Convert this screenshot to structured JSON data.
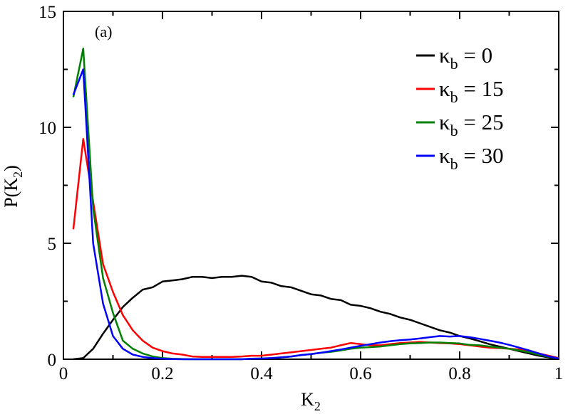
{
  "chart_data": {
    "type": "line",
    "annotation": "(a)",
    "xlabel": {
      "main": "K",
      "sub": "2"
    },
    "ylabel": {
      "main": "P(K",
      "sub": "2",
      "close": ")"
    },
    "xlim": [
      0,
      1
    ],
    "ylim": [
      0,
      15
    ],
    "xticks": [
      0,
      0.2,
      0.4,
      0.6,
      0.8,
      1
    ],
    "xtick_labels": [
      "0",
      "0.2",
      "0.4",
      "0.6",
      "0.8",
      "1"
    ],
    "yticks": [
      0,
      5,
      10,
      15
    ],
    "ytick_labels": [
      "0",
      "5",
      "10",
      "15"
    ],
    "legend_position": "top-right",
    "series": [
      {
        "name": "κb = 0",
        "legend": {
          "symbol": "κ",
          "sub": "b",
          "text": " = 0"
        },
        "color": "#000000",
        "x": [
          0.02,
          0.04,
          0.06,
          0.08,
          0.1,
          0.12,
          0.14,
          0.16,
          0.18,
          0.2,
          0.22,
          0.24,
          0.26,
          0.28,
          0.3,
          0.32,
          0.34,
          0.36,
          0.38,
          0.4,
          0.42,
          0.44,
          0.46,
          0.48,
          0.5,
          0.52,
          0.54,
          0.56,
          0.58,
          0.6,
          0.62,
          0.64,
          0.66,
          0.68,
          0.7,
          0.72,
          0.74,
          0.76,
          0.78,
          0.8,
          0.82,
          0.84,
          0.86,
          0.88,
          0.9,
          0.92,
          0.94,
          0.96,
          0.98,
          1.0
        ],
        "y": [
          0.0,
          0.05,
          0.45,
          1.1,
          1.7,
          2.25,
          2.65,
          3.0,
          3.1,
          3.35,
          3.4,
          3.45,
          3.55,
          3.55,
          3.5,
          3.55,
          3.55,
          3.6,
          3.55,
          3.35,
          3.3,
          3.15,
          3.1,
          2.95,
          2.8,
          2.75,
          2.6,
          2.55,
          2.35,
          2.3,
          2.2,
          2.05,
          1.95,
          1.8,
          1.7,
          1.55,
          1.4,
          1.25,
          1.15,
          1.0,
          0.9,
          0.78,
          0.65,
          0.55,
          0.45,
          0.35,
          0.25,
          0.15,
          0.08,
          0.0
        ]
      },
      {
        "name": "κb = 15",
        "legend": {
          "symbol": "κ",
          "sub": "b",
          "text": " = 15"
        },
        "color": "#ff0000",
        "x": [
          0.02,
          0.04,
          0.06,
          0.08,
          0.1,
          0.12,
          0.14,
          0.16,
          0.18,
          0.2,
          0.22,
          0.24,
          0.26,
          0.28,
          0.3,
          0.32,
          0.34,
          0.36,
          0.38,
          0.4,
          0.42,
          0.44,
          0.46,
          0.48,
          0.5,
          0.52,
          0.54,
          0.56,
          0.58,
          0.6,
          0.62,
          0.64,
          0.66,
          0.68,
          0.7,
          0.72,
          0.74,
          0.76,
          0.78,
          0.8,
          0.82,
          0.84,
          0.86,
          0.88,
          0.9,
          0.92,
          0.94,
          0.96,
          0.98,
          1.0
        ],
        "y": [
          5.6,
          9.5,
          6.8,
          4.1,
          2.9,
          1.9,
          1.25,
          0.8,
          0.5,
          0.35,
          0.25,
          0.2,
          0.12,
          0.1,
          0.1,
          0.1,
          0.1,
          0.12,
          0.15,
          0.15,
          0.2,
          0.25,
          0.3,
          0.35,
          0.4,
          0.45,
          0.5,
          0.6,
          0.7,
          0.65,
          0.6,
          0.6,
          0.65,
          0.7,
          0.72,
          0.75,
          0.72,
          0.7,
          0.68,
          0.65,
          0.6,
          0.55,
          0.5,
          0.48,
          0.45,
          0.42,
          0.35,
          0.25,
          0.15,
          0.05
        ]
      },
      {
        "name": "κb = 25",
        "legend": {
          "symbol": "κ",
          "sub": "b",
          "text": " = 25"
        },
        "color": "#008000",
        "x": [
          0.02,
          0.04,
          0.06,
          0.08,
          0.1,
          0.12,
          0.14,
          0.16,
          0.18,
          0.2,
          0.22,
          0.24,
          0.26,
          0.28,
          0.3,
          0.32,
          0.34,
          0.36,
          0.38,
          0.4,
          0.42,
          0.44,
          0.46,
          0.48,
          0.5,
          0.52,
          0.54,
          0.56,
          0.58,
          0.6,
          0.62,
          0.64,
          0.66,
          0.68,
          0.7,
          0.72,
          0.74,
          0.76,
          0.78,
          0.8,
          0.82,
          0.84,
          0.86,
          0.88,
          0.9,
          0.92,
          0.94,
          0.96,
          0.98,
          1.0
        ],
        "y": [
          11.3,
          13.4,
          6.5,
          3.5,
          2.0,
          0.8,
          0.45,
          0.25,
          0.12,
          0.05,
          0.02,
          0.01,
          0.0,
          0.0,
          0.0,
          0.0,
          0.0,
          0.0,
          0.02,
          0.03,
          0.05,
          0.08,
          0.12,
          0.18,
          0.22,
          0.28,
          0.32,
          0.38,
          0.45,
          0.5,
          0.52,
          0.55,
          0.6,
          0.65,
          0.68,
          0.7,
          0.72,
          0.72,
          0.7,
          0.68,
          0.62,
          0.6,
          0.55,
          0.5,
          0.45,
          0.38,
          0.3,
          0.2,
          0.1,
          0.03
        ]
      },
      {
        "name": "κb = 30",
        "legend": {
          "symbol": "κ",
          "sub": "b",
          "text": " = 30"
        },
        "color": "#0000ff",
        "x": [
          0.02,
          0.04,
          0.06,
          0.08,
          0.1,
          0.12,
          0.14,
          0.16,
          0.18,
          0.2,
          0.22,
          0.24,
          0.26,
          0.28,
          0.3,
          0.32,
          0.34,
          0.36,
          0.38,
          0.4,
          0.42,
          0.44,
          0.46,
          0.48,
          0.5,
          0.52,
          0.54,
          0.56,
          0.58,
          0.6,
          0.62,
          0.64,
          0.66,
          0.68,
          0.7,
          0.72,
          0.74,
          0.76,
          0.78,
          0.8,
          0.82,
          0.84,
          0.86,
          0.88,
          0.9,
          0.92,
          0.94,
          0.96,
          0.98,
          1.0
        ],
        "y": [
          11.4,
          12.5,
          5.0,
          2.4,
          1.0,
          0.45,
          0.2,
          0.1,
          0.05,
          0.02,
          0.01,
          0.0,
          0.0,
          0.0,
          0.0,
          0.0,
          0.0,
          0.0,
          0.02,
          0.03,
          0.05,
          0.08,
          0.12,
          0.18,
          0.22,
          0.28,
          0.35,
          0.42,
          0.5,
          0.58,
          0.65,
          0.72,
          0.78,
          0.82,
          0.85,
          0.9,
          0.95,
          1.0,
          0.98,
          1.0,
          0.95,
          0.88,
          0.8,
          0.72,
          0.62,
          0.5,
          0.38,
          0.25,
          0.12,
          0.03
        ]
      }
    ]
  }
}
